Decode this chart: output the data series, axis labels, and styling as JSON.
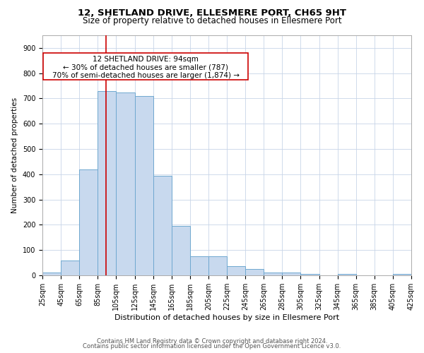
{
  "title_line1": "12, SHETLAND DRIVE, ELLESMERE PORT, CH65 9HT",
  "title_line2": "Size of property relative to detached houses in Ellesmere Port",
  "xlabel": "Distribution of detached houses by size in Ellesmere Port",
  "ylabel": "Number of detached properties",
  "footer_line1": "Contains HM Land Registry data © Crown copyright and database right 2024.",
  "footer_line2": "Contains public sector information licensed under the Open Government Licence v3.0.",
  "annotation_line1": "12 SHETLAND DRIVE: 94sqm",
  "annotation_line2": "← 30% of detached houses are smaller (787)",
  "annotation_line3": "70% of semi-detached houses are larger (1,874) →",
  "property_size": 94,
  "bin_edges": [
    25,
    45,
    65,
    85,
    105,
    125,
    145,
    165,
    185,
    205,
    225,
    245,
    265,
    285,
    305,
    325,
    345,
    365,
    385,
    405,
    425
  ],
  "bar_values": [
    10,
    58,
    420,
    728,
    725,
    710,
    395,
    195,
    75,
    75,
    35,
    25,
    10,
    10,
    5,
    0,
    5,
    0,
    0,
    5
  ],
  "bar_color": "#c8d9ee",
  "bar_edge_color": "#6fa8d0",
  "line_color": "#cc0000",
  "ylim": [
    0,
    950
  ],
  "yticks": [
    0,
    100,
    200,
    300,
    400,
    500,
    600,
    700,
    800,
    900
  ],
  "bg_color": "#ffffff",
  "grid_color": "#c8d4e8",
  "title1_fontsize": 9.5,
  "title2_fontsize": 8.5,
  "xlabel_fontsize": 8,
  "ylabel_fontsize": 7.5,
  "tick_fontsize": 7,
  "annotation_fontsize": 7.5,
  "footer_fontsize": 6
}
